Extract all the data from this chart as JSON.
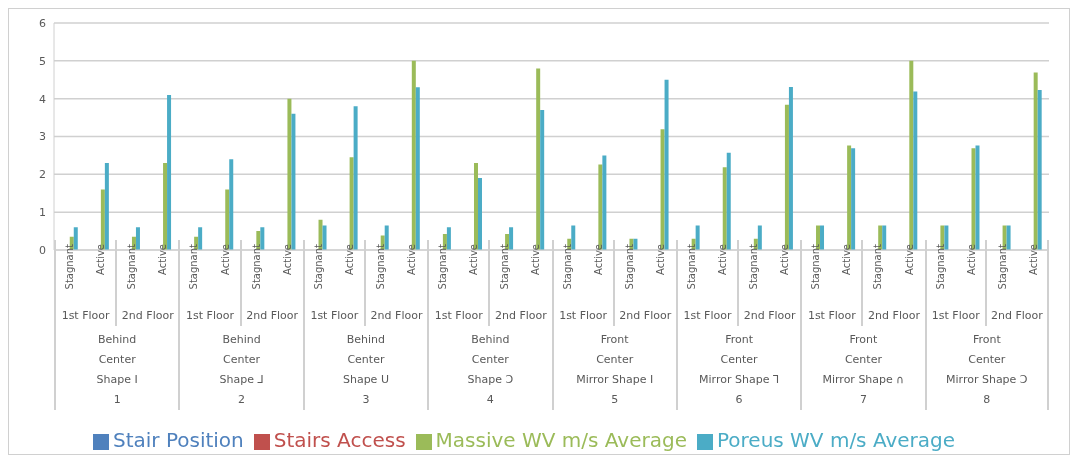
{
  "chart_data": {
    "type": "bar",
    "categories": [
      "Stagnant",
      "Active",
      "Stagnant",
      "Active",
      "Stagnant",
      "Active",
      "Stagnant",
      "Active",
      "Stagnant",
      "Active",
      "Stagnant",
      "Active",
      "Stagnant",
      "Active",
      "Stagnant",
      "Active",
      "Stagnant",
      "Active",
      "Stagnant",
      "Active",
      "Stagnant",
      "Active",
      "Stagnant",
      "Active",
      "Stagnant",
      "Active",
      "Stagnant",
      "Active",
      "Stagnant",
      "Active",
      "Stagnant",
      "Active"
    ],
    "series": [
      {
        "name": "Stair Position",
        "color": "#4f81bd",
        "values": [
          null,
          null,
          null,
          null,
          null,
          null,
          null,
          null,
          null,
          null,
          null,
          null,
          null,
          null,
          null,
          null,
          null,
          null,
          null,
          null,
          null,
          null,
          null,
          null,
          null,
          null,
          null,
          null,
          null,
          null,
          null,
          null
        ]
      },
      {
        "name": "Stairs Access",
        "color": "#c0504d",
        "values": [
          null,
          null,
          null,
          null,
          null,
          null,
          null,
          null,
          null,
          null,
          null,
          null,
          null,
          null,
          null,
          null,
          null,
          null,
          null,
          null,
          null,
          null,
          null,
          null,
          null,
          null,
          null,
          null,
          null,
          null,
          null,
          null
        ]
      },
      {
        "name": "Massive WV m/s Average",
        "color": "#9bbb59",
        "values": [
          0.35,
          1.6,
          0.35,
          2.3,
          0.35,
          1.6,
          0.5,
          4.0,
          0.8,
          2.45,
          0.38,
          5.0,
          0.42,
          2.3,
          0.42,
          4.8,
          0.3,
          2.26,
          0.3,
          3.19,
          0.3,
          2.19,
          0.3,
          3.84,
          0.65,
          2.76,
          0.65,
          5.0,
          0.65,
          2.69,
          0.65,
          4.69
        ]
      },
      {
        "name": "Poreus WV m/s Average",
        "color": "#4bacc6",
        "values": [
          0.6,
          2.3,
          0.6,
          4.1,
          0.6,
          2.4,
          0.6,
          3.6,
          0.65,
          3.8,
          0.65,
          4.3,
          0.6,
          1.9,
          0.6,
          3.7,
          0.65,
          2.5,
          0.3,
          4.5,
          0.65,
          2.57,
          0.65,
          4.31,
          0.65,
          2.69,
          0.65,
          4.19,
          0.65,
          2.76,
          0.65,
          4.23
        ]
      }
    ],
    "ylim": [
      0,
      6
    ],
    "yticks": [
      0,
      1,
      2,
      3,
      4,
      5,
      6
    ],
    "grid": "y",
    "legend": "bottom",
    "annotations": [
      "1st Floor",
      "2nd Floor",
      "Behind",
      "Center",
      "Shape I",
      "1",
      "1st Floor",
      "2nd Floor",
      "Behind",
      "Center",
      "Shape ⅃",
      "2",
      "1st Floor",
      "2nd Floor",
      "Behind",
      "Center",
      "Shape U",
      "3",
      "1st Floor",
      "2nd Floor",
      "Behind",
      "Center",
      "Shape Ɔ",
      "4",
      "1st Floor",
      "2nd Floor",
      "Front",
      "Center",
      "Mirror Shape I",
      "5",
      "1st Floor",
      "2nd Floor",
      "Front",
      "Center",
      "Mirror Shape ⅂",
      "6",
      "1st Floor",
      "2nd Floor",
      "Front",
      "Center",
      "Mirror Shape ∩",
      "7",
      "1st Floor",
      "2nd Floor",
      "Front",
      "Center",
      "Mirror Shape Ɔ",
      "8"
    ]
  }
}
